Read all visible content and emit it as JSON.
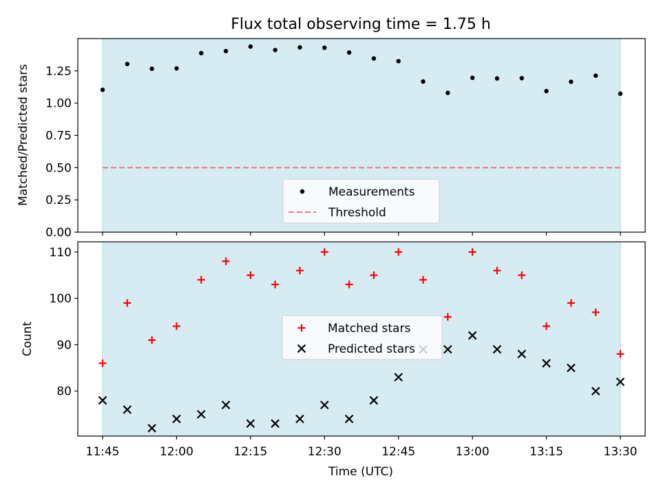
{
  "chart_data": [
    {
      "type": "scatter",
      "title": "Flux total observing time = 1.75 h",
      "ylabel": "Matched/Predicted stars",
      "ylim": [
        0,
        1.5
      ],
      "y_ticks": [
        "0.00",
        "0.25",
        "0.50",
        "0.75",
        "1.00",
        "1.25"
      ],
      "y_tick_values": [
        0,
        0.25,
        0.5,
        0.75,
        1.0,
        1.25
      ],
      "x": [
        "11:45",
        "11:50",
        "11:55",
        "12:00",
        "12:05",
        "12:10",
        "12:15",
        "12:20",
        "12:25",
        "12:30",
        "12:35",
        "12:40",
        "12:45",
        "12:50",
        "12:55",
        "13:00",
        "13:05",
        "13:10",
        "13:15",
        "13:20",
        "13:25",
        "13:30"
      ],
      "series": [
        {
          "name": "Measurements",
          "marker": "dot",
          "color": "#000000",
          "values": [
            1.103,
            1.303,
            1.266,
            1.269,
            1.387,
            1.403,
            1.438,
            1.411,
            1.432,
            1.429,
            1.392,
            1.346,
            1.325,
            1.167,
            1.079,
            1.196,
            1.191,
            1.193,
            1.093,
            1.165,
            1.213,
            1.073
          ]
        }
      ],
      "threshold": {
        "name": "Threshold",
        "value": 0.5,
        "color": "#e87a7a",
        "style": "dashed"
      },
      "legend": "lower-center",
      "shaded_span_color": "#add8e6"
    },
    {
      "type": "scatter",
      "xlabel": "Time (UTC)",
      "ylabel": "Count",
      "ylim": [
        70.3,
        112.2
      ],
      "y_ticks": [
        "80",
        "90",
        "100",
        "110"
      ],
      "y_tick_values": [
        80,
        90,
        100,
        110
      ],
      "x_ticks": [
        "11:45",
        "12:00",
        "12:15",
        "12:30",
        "12:45",
        "13:00",
        "13:15",
        "13:30"
      ],
      "x": [
        "11:45",
        "11:50",
        "11:55",
        "12:00",
        "12:05",
        "12:10",
        "12:15",
        "12:20",
        "12:25",
        "12:30",
        "12:35",
        "12:40",
        "12:45",
        "12:50",
        "12:55",
        "13:00",
        "13:05",
        "13:10",
        "13:15",
        "13:20",
        "13:25",
        "13:30"
      ],
      "series": [
        {
          "name": "Matched stars",
          "marker": "plus",
          "color": "#ff0000",
          "values": [
            86,
            99,
            91,
            94,
            104,
            108,
            105,
            103,
            106,
            110,
            103,
            105,
            110,
            104,
            96,
            110,
            106,
            105,
            94,
            99,
            97,
            88
          ]
        },
        {
          "name": "Predicted stars",
          "marker": "x",
          "color": "#000000",
          "values": [
            78,
            76,
            72,
            74,
            75,
            77,
            73,
            73,
            74,
            77,
            74,
            78,
            83,
            89,
            89,
            92,
            89,
            88,
            86,
            85,
            80,
            82
          ]
        }
      ],
      "legend": "center",
      "shaded_span_color": "#add8e6"
    }
  ]
}
